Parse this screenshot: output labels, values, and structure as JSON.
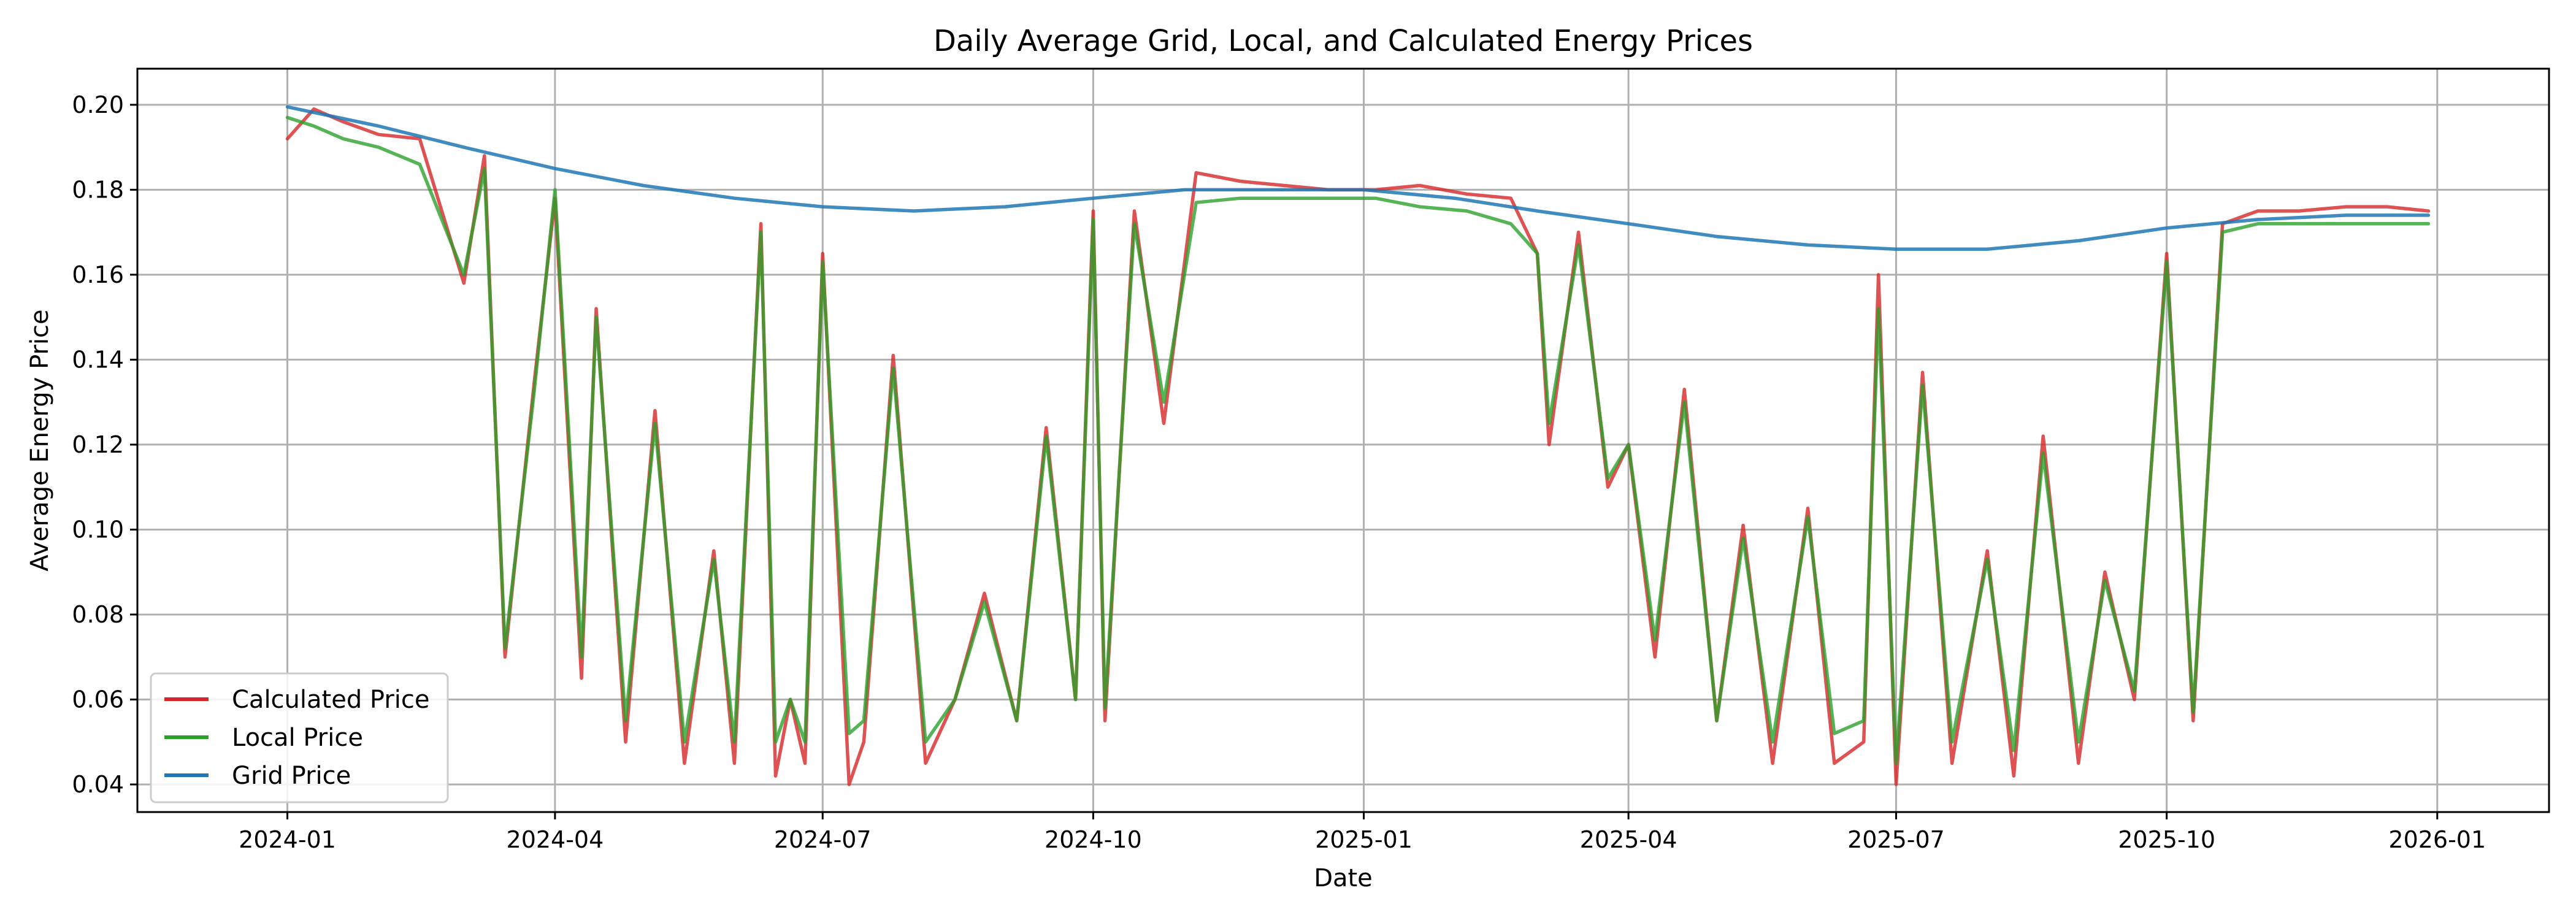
{
  "chart_data": {
    "type": "line",
    "title": "Daily Average Grid, Local, and Calculated Energy Prices",
    "xlabel": "Date",
    "ylabel": "Average Energy Price",
    "xlim": [
      "2023-11-11",
      "2026-02-08"
    ],
    "ylim": [
      0.0335,
      0.2085
    ],
    "x_ticks": [
      "2024-01",
      "2024-04",
      "2024-07",
      "2024-10",
      "2025-01",
      "2025-04",
      "2025-07",
      "2025-10",
      "2026-01"
    ],
    "y_ticks": [
      0.04,
      0.06,
      0.08,
      0.1,
      0.12,
      0.14,
      0.16,
      0.18,
      0.2
    ],
    "y_tick_labels": [
      "0.04",
      "0.06",
      "0.08",
      "0.10",
      "0.12",
      "0.14",
      "0.16",
      "0.18",
      "0.20"
    ],
    "grid": true,
    "legend_position": "lower-left",
    "series": [
      {
        "name": "Calculated Price",
        "color": "#d62728",
        "x": [
          "2024-01-01",
          "2024-01-10",
          "2024-01-20",
          "2024-02-01",
          "2024-02-15",
          "2024-03-01",
          "2024-03-08",
          "2024-03-15",
          "2024-03-25",
          "2024-04-01",
          "2024-04-10",
          "2024-04-15",
          "2024-04-25",
          "2024-05-05",
          "2024-05-15",
          "2024-05-25",
          "2024-06-01",
          "2024-06-10",
          "2024-06-15",
          "2024-06-20",
          "2024-06-25",
          "2024-07-01",
          "2024-07-10",
          "2024-07-15",
          "2024-07-25",
          "2024-08-05",
          "2024-08-15",
          "2024-08-25",
          "2024-09-05",
          "2024-09-15",
          "2024-09-25",
          "2024-10-01",
          "2024-10-05",
          "2024-10-15",
          "2024-10-25",
          "2024-11-05",
          "2024-11-20",
          "2024-12-05",
          "2024-12-20",
          "2025-01-05",
          "2025-01-20",
          "2025-02-05",
          "2025-02-20",
          "2025-03-01",
          "2025-03-05",
          "2025-03-15",
          "2025-03-25",
          "2025-04-01",
          "2025-04-10",
          "2025-04-20",
          "2025-05-01",
          "2025-05-10",
          "2025-05-20",
          "2025-06-01",
          "2025-06-10",
          "2025-06-20",
          "2025-06-25",
          "2025-07-01",
          "2025-07-10",
          "2025-07-20",
          "2025-08-01",
          "2025-08-10",
          "2025-08-20",
          "2025-09-01",
          "2025-09-10",
          "2025-09-20",
          "2025-10-01",
          "2025-10-10",
          "2025-10-20",
          "2025-11-01",
          "2025-11-15",
          "2025-12-01",
          "2025-12-15",
          "2025-12-29"
        ],
        "values": [
          0.192,
          0.199,
          0.196,
          0.193,
          0.192,
          0.158,
          0.188,
          0.07,
          0.135,
          0.178,
          0.065,
          0.152,
          0.05,
          0.128,
          0.045,
          0.095,
          0.045,
          0.172,
          0.042,
          0.06,
          0.045,
          0.165,
          0.04,
          0.05,
          0.141,
          0.045,
          0.06,
          0.085,
          0.055,
          0.124,
          0.06,
          0.175,
          0.055,
          0.175,
          0.125,
          0.184,
          0.182,
          0.181,
          0.18,
          0.18,
          0.181,
          0.179,
          0.178,
          0.165,
          0.12,
          0.17,
          0.11,
          0.12,
          0.07,
          0.133,
          0.055,
          0.101,
          0.045,
          0.105,
          0.045,
          0.05,
          0.16,
          0.04,
          0.137,
          0.045,
          0.095,
          0.042,
          0.122,
          0.045,
          0.09,
          0.06,
          0.165,
          0.055,
          0.172,
          0.175,
          0.175,
          0.176,
          0.176,
          0.175
        ]
      },
      {
        "name": "Local Price",
        "color": "#2ca02c",
        "x": [
          "2024-01-01",
          "2024-01-10",
          "2024-01-20",
          "2024-02-01",
          "2024-02-15",
          "2024-03-01",
          "2024-03-08",
          "2024-03-15",
          "2024-03-25",
          "2024-04-01",
          "2024-04-10",
          "2024-04-15",
          "2024-04-25",
          "2024-05-05",
          "2024-05-15",
          "2024-05-25",
          "2024-06-01",
          "2024-06-10",
          "2024-06-15",
          "2024-06-20",
          "2024-06-25",
          "2024-07-01",
          "2024-07-10",
          "2024-07-15",
          "2024-07-25",
          "2024-08-05",
          "2024-08-15",
          "2024-08-25",
          "2024-09-05",
          "2024-09-15",
          "2024-09-25",
          "2024-10-01",
          "2024-10-05",
          "2024-10-15",
          "2024-10-25",
          "2024-11-05",
          "2024-11-20",
          "2024-12-05",
          "2024-12-20",
          "2025-01-05",
          "2025-01-20",
          "2025-02-05",
          "2025-02-20",
          "2025-03-01",
          "2025-03-05",
          "2025-03-15",
          "2025-03-25",
          "2025-04-01",
          "2025-04-10",
          "2025-04-20",
          "2025-05-01",
          "2025-05-10",
          "2025-05-20",
          "2025-06-01",
          "2025-06-10",
          "2025-06-20",
          "2025-06-25",
          "2025-07-01",
          "2025-07-10",
          "2025-07-20",
          "2025-08-01",
          "2025-08-10",
          "2025-08-20",
          "2025-09-01",
          "2025-09-10",
          "2025-09-20",
          "2025-10-01",
          "2025-10-10",
          "2025-10-20",
          "2025-11-01",
          "2025-11-15",
          "2025-12-01",
          "2025-12-15",
          "2025-12-29"
        ],
        "values": [
          0.197,
          0.195,
          0.192,
          0.19,
          0.186,
          0.16,
          0.185,
          0.072,
          0.133,
          0.18,
          0.07,
          0.15,
          0.055,
          0.125,
          0.05,
          0.093,
          0.05,
          0.17,
          0.05,
          0.06,
          0.05,
          0.163,
          0.052,
          0.055,
          0.138,
          0.05,
          0.06,
          0.083,
          0.055,
          0.122,
          0.06,
          0.173,
          0.058,
          0.172,
          0.13,
          0.177,
          0.178,
          0.178,
          0.178,
          0.178,
          0.176,
          0.175,
          0.172,
          0.165,
          0.125,
          0.167,
          0.112,
          0.12,
          0.074,
          0.13,
          0.055,
          0.098,
          0.05,
          0.103,
          0.052,
          0.055,
          0.152,
          0.045,
          0.134,
          0.05,
          0.093,
          0.048,
          0.118,
          0.05,
          0.088,
          0.062,
          0.163,
          0.057,
          0.17,
          0.172,
          0.172,
          0.172,
          0.172,
          0.172
        ]
      },
      {
        "name": "Grid Price",
        "color": "#1f77b4",
        "x": [
          "2024-01-01",
          "2024-02-01",
          "2024-03-01",
          "2024-04-01",
          "2024-05-01",
          "2024-06-01",
          "2024-07-01",
          "2024-08-01",
          "2024-09-01",
          "2024-10-01",
          "2024-11-01",
          "2024-12-01",
          "2025-01-01",
          "2025-02-01",
          "2025-03-01",
          "2025-04-01",
          "2025-05-01",
          "2025-06-01",
          "2025-07-01",
          "2025-08-01",
          "2025-09-01",
          "2025-10-01",
          "2025-11-01",
          "2025-12-01",
          "2025-12-29"
        ],
        "values": [
          0.1995,
          0.195,
          0.19,
          0.185,
          0.181,
          0.178,
          0.176,
          0.175,
          0.176,
          0.178,
          0.18,
          0.18,
          0.18,
          0.178,
          0.175,
          0.172,
          0.169,
          0.167,
          0.166,
          0.166,
          0.168,
          0.171,
          0.173,
          0.174,
          0.174
        ]
      }
    ]
  }
}
